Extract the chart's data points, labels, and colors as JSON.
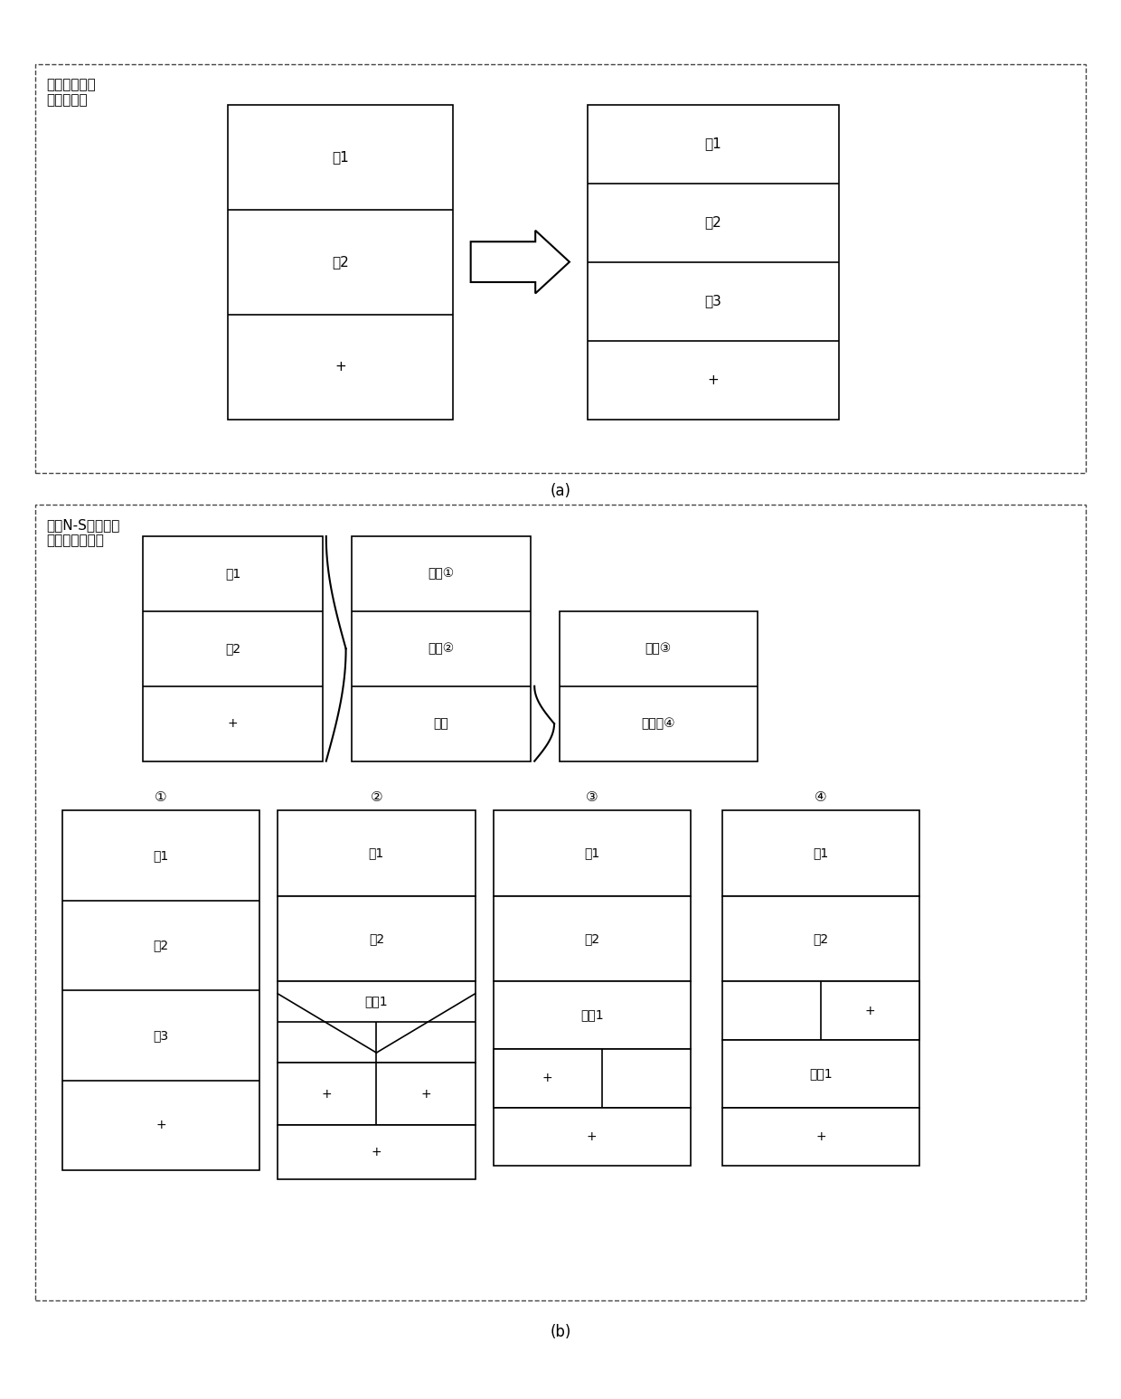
{
  "fig_width": 12.4,
  "fig_height": 15.47,
  "bg_color": "#ffffff",
  "box_color": "#000000",
  "dash_color": "#444444",
  "label_a": "(a)",
  "label_b": "(b)",
  "part_a_label": "传统测试仪状\n态序列输入",
  "part_b_label": "基于N-S图的可编\n程状态序列输入",
  "states_3": [
    "状1",
    "状2",
    "+"
  ],
  "states_4": [
    "状1",
    "状2",
    "状3",
    "+"
  ],
  "ns_menu": [
    "顺序①",
    "选择②",
    "循环"
  ],
  "ns_loop": [
    "当型③",
    "直到型④"
  ],
  "diagram_labels": [
    "①",
    "②",
    "③",
    "④"
  ],
  "fontsize_main": 11,
  "fontsize_small": 10,
  "fontsize_caption": 12,
  "fontsize_label": 11
}
